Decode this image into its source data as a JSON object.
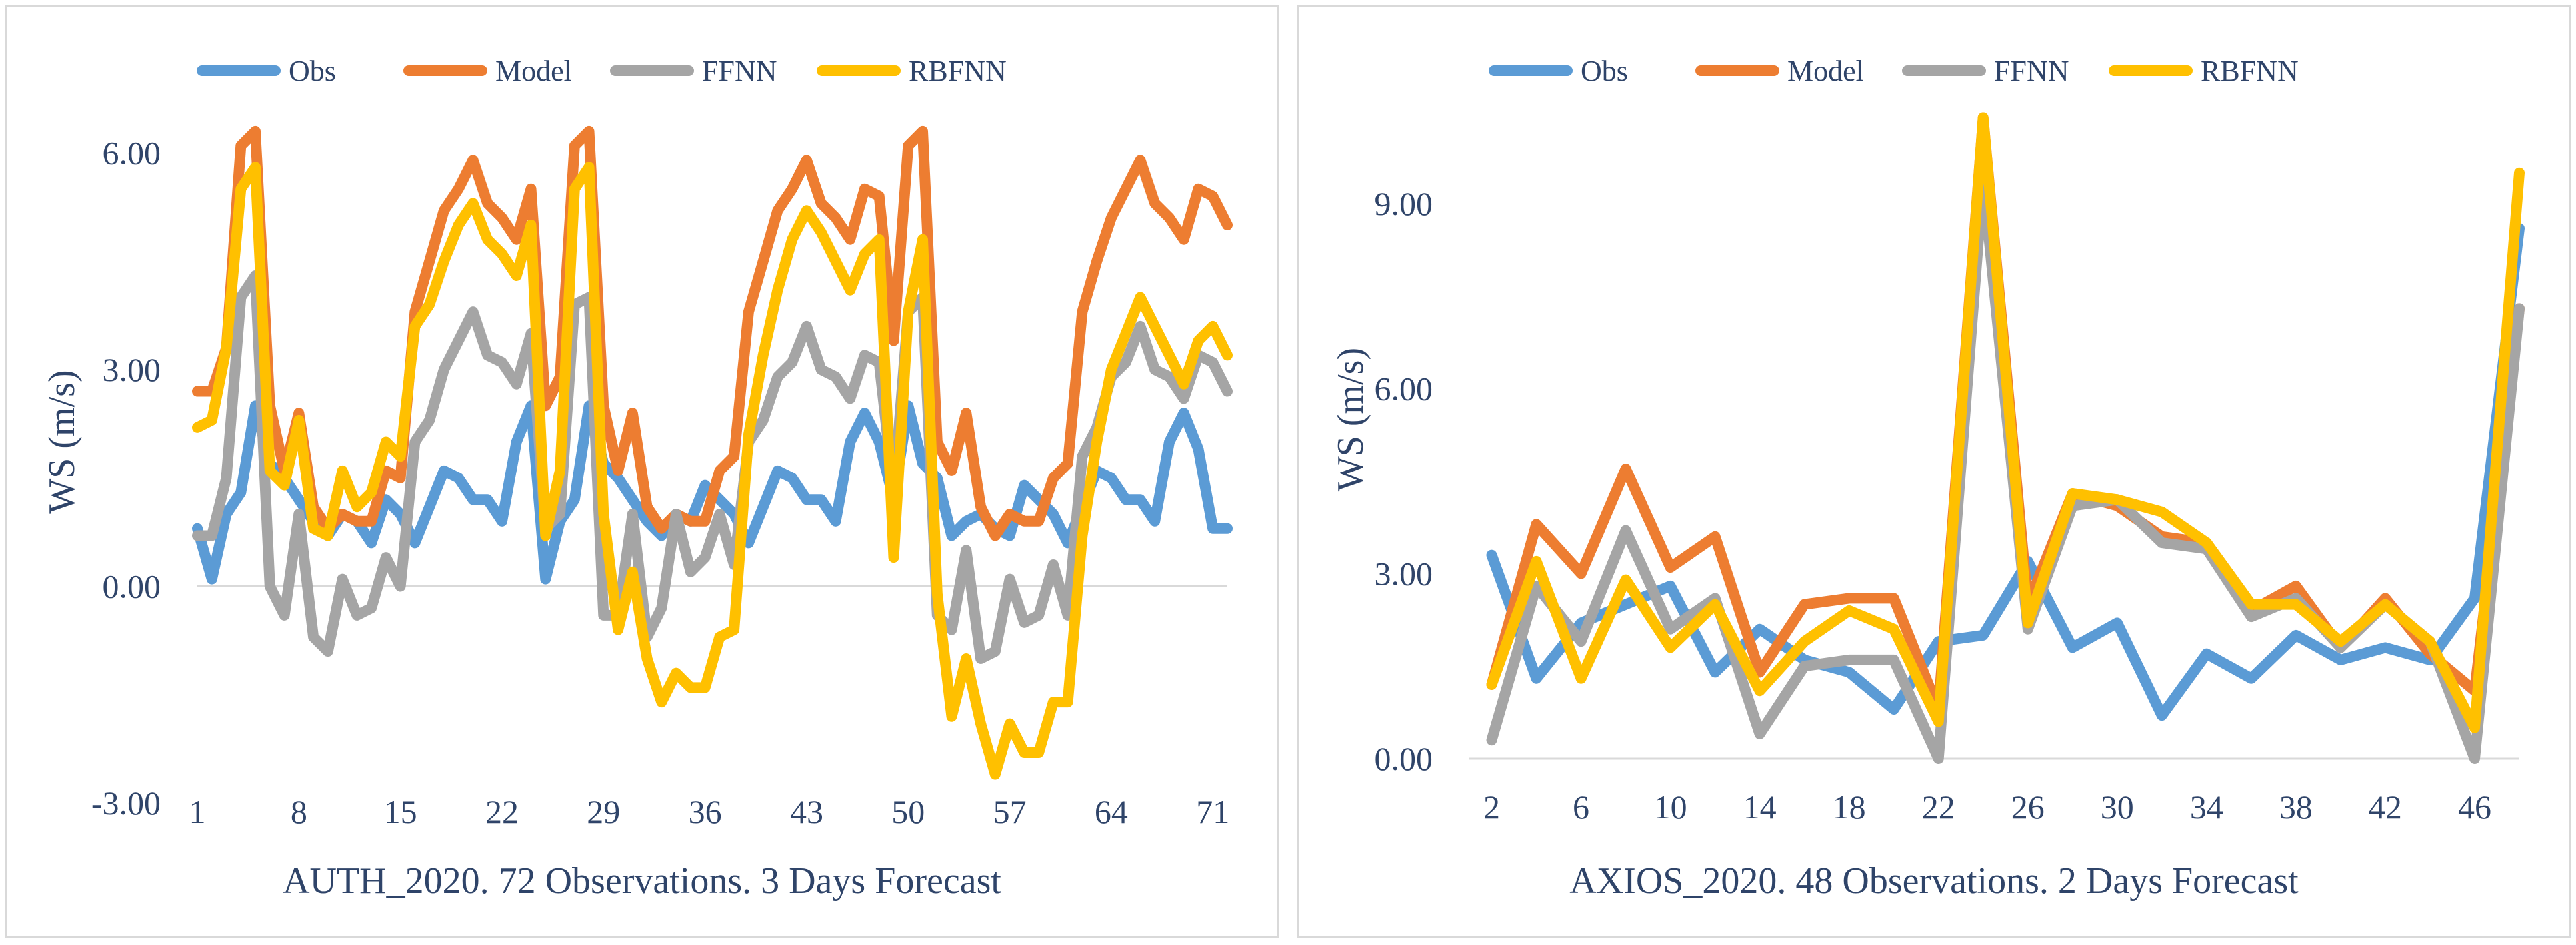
{
  "chart_data": [
    {
      "type": "line",
      "title": "AUTH_2020. 72 Observations. 3 Days Forecast",
      "xlabel": "",
      "ylabel": "WS (m/s)",
      "ylim": [
        -3,
        7
      ],
      "yticks": [
        -3,
        0,
        3,
        6
      ],
      "ytick_labels": [
        "-3.00",
        "0.00",
        "3.00",
        "6.00"
      ],
      "xlim": [
        1,
        72
      ],
      "xticks": [
        1,
        8,
        15,
        22,
        29,
        36,
        43,
        50,
        57,
        64,
        71
      ],
      "xtick_labels": [
        "1",
        "8",
        "15",
        "22",
        "29",
        "36",
        "43",
        "50",
        "57",
        "64",
        "71"
      ],
      "legend_position": "top",
      "x": [
        1,
        2,
        3,
        4,
        5,
        6,
        7,
        8,
        9,
        10,
        11,
        12,
        13,
        14,
        15,
        16,
        17,
        18,
        19,
        20,
        21,
        22,
        23,
        24,
        25,
        26,
        27,
        28,
        29,
        30,
        31,
        32,
        33,
        34,
        35,
        36,
        37,
        38,
        39,
        40,
        41,
        42,
        43,
        44,
        45,
        46,
        47,
        48,
        49,
        50,
        51,
        52,
        53,
        54,
        55,
        56,
        57,
        58,
        59,
        60,
        61,
        62,
        63,
        64,
        65,
        66,
        67,
        68,
        69,
        70,
        71,
        72
      ],
      "series": [
        {
          "name": "Obs",
          "color": "#5b9bd5",
          "values": [
            0.8,
            0.1,
            1.0,
            1.3,
            2.5,
            1.7,
            1.5,
            1.2,
            0.9,
            0.7,
            1.0,
            0.9,
            0.6,
            1.2,
            1.0,
            0.6,
            1.1,
            1.6,
            1.5,
            1.2,
            1.2,
            0.9,
            2.0,
            2.5,
            0.1,
            0.9,
            1.2,
            2.5,
            1.7,
            1.5,
            1.2,
            0.9,
            0.7,
            1.0,
            0.9,
            1.4,
            1.2,
            1.0,
            0.6,
            1.1,
            1.6,
            1.5,
            1.2,
            1.2,
            0.9,
            2.0,
            2.4,
            2.0,
            1.2,
            2.5,
            1.7,
            1.5,
            0.7,
            0.9,
            1.0,
            0.8,
            0.7,
            1.4,
            1.2,
            1.0,
            0.6,
            1.1,
            1.6,
            1.5,
            1.2,
            1.2,
            0.9,
            2.0,
            2.4,
            1.9,
            0.8,
            0.8
          ]
        },
        {
          "name": "Model",
          "color": "#ed7d31",
          "values": [
            2.7,
            2.7,
            3.3,
            6.1,
            6.3,
            2.5,
            1.6,
            2.4,
            1.1,
            0.8,
            1.0,
            0.9,
            0.9,
            1.6,
            1.5,
            3.8,
            4.5,
            5.2,
            5.5,
            5.9,
            5.3,
            5.1,
            4.8,
            5.5,
            2.5,
            2.9,
            6.1,
            6.3,
            2.5,
            1.6,
            2.4,
            1.1,
            0.8,
            1.0,
            0.9,
            0.9,
            1.6,
            1.8,
            3.8,
            4.5,
            5.2,
            5.5,
            5.9,
            5.3,
            5.1,
            4.8,
            5.5,
            5.4,
            3.4,
            6.1,
            6.3,
            2.0,
            1.6,
            2.4,
            1.1,
            0.7,
            1.0,
            0.9,
            0.9,
            1.5,
            1.7,
            3.8,
            4.5,
            5.1,
            5.5,
            5.9,
            5.3,
            5.1,
            4.8,
            5.5,
            5.4,
            5.0
          ]
        },
        {
          "name": "FFNN",
          "color": "#a5a5a5",
          "values": [
            0.7,
            0.7,
            1.5,
            4.0,
            4.3,
            0.0,
            -0.4,
            1.0,
            -0.7,
            -0.9,
            0.1,
            -0.4,
            -0.3,
            0.4,
            0.0,
            2.0,
            2.3,
            3.0,
            3.4,
            3.8,
            3.2,
            3.1,
            2.8,
            3.5,
            0.8,
            1.0,
            3.9,
            4.0,
            -0.4,
            -0.4,
            1.0,
            -0.7,
            -0.3,
            1.0,
            0.2,
            0.4,
            1.0,
            0.3,
            2.0,
            2.3,
            2.9,
            3.1,
            3.6,
            3.0,
            2.9,
            2.6,
            3.2,
            3.1,
            1.3,
            3.8,
            4.0,
            -0.4,
            -0.6,
            0.5,
            -1.0,
            -0.9,
            0.1,
            -0.5,
            -0.4,
            0.3,
            -0.4,
            1.8,
            2.2,
            2.9,
            3.1,
            3.6,
            3.0,
            2.9,
            2.6,
            3.2,
            3.1,
            2.7
          ]
        },
        {
          "name": "RBFNN",
          "color": "#ffc000",
          "values": [
            2.2,
            2.3,
            3.3,
            5.5,
            5.8,
            1.6,
            1.4,
            2.3,
            0.8,
            0.7,
            1.6,
            1.1,
            1.3,
            2.0,
            1.8,
            3.6,
            3.9,
            4.5,
            5.0,
            5.3,
            4.8,
            4.6,
            4.3,
            5.0,
            0.7,
            1.6,
            5.5,
            5.8,
            1.0,
            -0.6,
            0.2,
            -1.0,
            -1.6,
            -1.2,
            -1.4,
            -1.4,
            -0.7,
            -0.6,
            2.1,
            3.2,
            4.1,
            4.8,
            5.2,
            4.9,
            4.5,
            4.1,
            4.6,
            4.8,
            0.4,
            3.8,
            4.8,
            -0.1,
            -1.8,
            -1.0,
            -1.9,
            -2.6,
            -1.9,
            -2.3,
            -2.3,
            -1.6,
            -1.6,
            0.7,
            2.0,
            3.0,
            3.5,
            4.0,
            3.6,
            3.2,
            2.8,
            3.4,
            3.6,
            3.2
          ]
        }
      ]
    },
    {
      "type": "line",
      "title": "AXIOS_2020. 48 Observations. 2 Days Forecast",
      "xlabel": "",
      "ylabel": "WS (m/s)",
      "ylim": [
        0,
        11
      ],
      "yticks": [
        0,
        3,
        6,
        9
      ],
      "ytick_labels": [
        "0.00",
        "3.00",
        "6.00",
        "9.00"
      ],
      "xlim": [
        1,
        48
      ],
      "xticks": [
        2,
        6,
        10,
        14,
        18,
        22,
        26,
        30,
        34,
        38,
        42,
        46
      ],
      "xtick_labels": [
        "2",
        "6",
        "10",
        "14",
        "18",
        "22",
        "26",
        "30",
        "34",
        "38",
        "42",
        "46"
      ],
      "legend_position": "top",
      "x": [
        2,
        4,
        6,
        8,
        10,
        12,
        14,
        16,
        18,
        20,
        22,
        24,
        26,
        28,
        30,
        32,
        34,
        36,
        38,
        40,
        42,
        44,
        46,
        48
      ],
      "series": [
        {
          "name": "Obs",
          "color": "#5b9bd5",
          "values": [
            3.3,
            1.3,
            2.2,
            2.5,
            2.8,
            1.4,
            2.1,
            1.6,
            1.4,
            0.8,
            1.9,
            2.0,
            3.2,
            1.8,
            2.2,
            0.7,
            1.7,
            1.3,
            2.0,
            1.6,
            1.8,
            1.6,
            2.6,
            8.6
          ]
        },
        {
          "name": "Model",
          "color": "#ed7d31",
          "values": [
            1.2,
            3.8,
            3.0,
            4.7,
            3.1,
            3.6,
            1.4,
            2.5,
            2.6,
            2.6,
            0.8,
            10.4,
            2.5,
            4.3,
            4.1,
            3.6,
            3.5,
            2.4,
            2.8,
            1.8,
            2.6,
            1.7,
            1.1,
            7.3
          ]
        },
        {
          "name": "FFNN",
          "color": "#a5a5a5",
          "values": [
            0.3,
            2.8,
            1.9,
            3.7,
            2.1,
            2.6,
            0.4,
            1.5,
            1.6,
            1.6,
            0.0,
            9.4,
            2.1,
            4.1,
            4.2,
            3.5,
            3.4,
            2.3,
            2.6,
            1.8,
            2.5,
            1.9,
            0.0,
            7.3
          ]
        },
        {
          "name": "RBFNN",
          "color": "#ffc000",
          "values": [
            1.2,
            3.2,
            1.3,
            2.9,
            1.8,
            2.5,
            1.1,
            1.9,
            2.4,
            2.1,
            0.6,
            10.4,
            2.2,
            4.3,
            4.2,
            4.0,
            3.5,
            2.5,
            2.5,
            1.9,
            2.5,
            1.9,
            0.5,
            9.5
          ]
        }
      ]
    }
  ]
}
